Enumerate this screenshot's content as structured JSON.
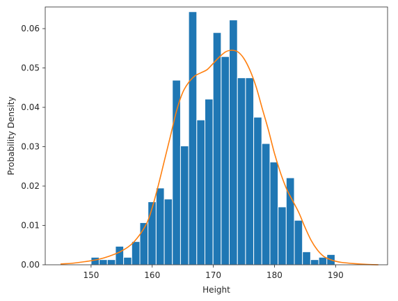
{
  "chart_data": {
    "type": "bar",
    "title": "",
    "xlabel": "Height",
    "ylabel": "Probability Density",
    "xlim": [
      142.5,
      198.5
    ],
    "ylim": [
      0,
      0.0655
    ],
    "grid": false,
    "legend": "none",
    "x_ticks": [
      150,
      160,
      170,
      180,
      190
    ],
    "y_ticks": [
      0.0,
      0.01,
      0.02,
      0.03,
      0.04,
      0.05,
      0.06
    ],
    "y_tick_labels": [
      "0.00",
      "0.01",
      "0.02",
      "0.03",
      "0.04",
      "0.05",
      "0.06"
    ],
    "bar_color": "#1f77b4",
    "kde_color": "#ff7f0e",
    "bins": [
      {
        "x0": 150.0,
        "x1": 151.33,
        "density": 0.0019
      },
      {
        "x0": 151.33,
        "x1": 152.66,
        "density": 0.0013
      },
      {
        "x0": 152.66,
        "x1": 153.99,
        "density": 0.0013
      },
      {
        "x0": 153.99,
        "x1": 155.32,
        "density": 0.0047
      },
      {
        "x0": 155.32,
        "x1": 156.65,
        "density": 0.0019
      },
      {
        "x0": 156.65,
        "x1": 157.98,
        "density": 0.0059
      },
      {
        "x0": 157.98,
        "x1": 159.31,
        "density": 0.0107
      },
      {
        "x0": 159.31,
        "x1": 160.64,
        "density": 0.016
      },
      {
        "x0": 160.64,
        "x1": 161.97,
        "density": 0.0195
      },
      {
        "x0": 161.97,
        "x1": 163.3,
        "density": 0.0167
      },
      {
        "x0": 163.3,
        "x1": 164.63,
        "density": 0.0469
      },
      {
        "x0": 164.63,
        "x1": 165.96,
        "density": 0.0302
      },
      {
        "x0": 165.96,
        "x1": 167.29,
        "density": 0.0643
      },
      {
        "x0": 167.29,
        "x1": 168.62,
        "density": 0.0368
      },
      {
        "x0": 168.62,
        "x1": 169.95,
        "density": 0.0421
      },
      {
        "x0": 169.95,
        "x1": 171.28,
        "density": 0.059
      },
      {
        "x0": 171.28,
        "x1": 172.61,
        "density": 0.0529
      },
      {
        "x0": 172.61,
        "x1": 173.94,
        "density": 0.0622
      },
      {
        "x0": 173.94,
        "x1": 175.27,
        "density": 0.0475
      },
      {
        "x0": 175.27,
        "x1": 176.6,
        "density": 0.0475
      },
      {
        "x0": 176.6,
        "x1": 177.93,
        "density": 0.0375
      },
      {
        "x0": 177.93,
        "x1": 179.26,
        "density": 0.0308
      },
      {
        "x0": 179.26,
        "x1": 180.59,
        "density": 0.0261
      },
      {
        "x0": 180.59,
        "x1": 181.92,
        "density": 0.0147
      },
      {
        "x0": 181.92,
        "x1": 183.25,
        "density": 0.0221
      },
      {
        "x0": 183.25,
        "x1": 184.58,
        "density": 0.0113
      },
      {
        "x0": 184.58,
        "x1": 185.91,
        "density": 0.0033
      },
      {
        "x0": 185.91,
        "x1": 187.24,
        "density": 0.0013
      },
      {
        "x0": 187.24,
        "x1": 188.57,
        "density": 0.0019
      },
      {
        "x0": 188.57,
        "x1": 189.9,
        "density": 0.0026
      }
    ],
    "kde": {
      "x": [
        145,
        147,
        149,
        151,
        153,
        155,
        157,
        159,
        160,
        161,
        162,
        163,
        164,
        165,
        166,
        167,
        168,
        169,
        170,
        171,
        172,
        173,
        174,
        175,
        176,
        177,
        178,
        179,
        180,
        181,
        182,
        183,
        184,
        185,
        186,
        187,
        188,
        189,
        190,
        191,
        193,
        195,
        197
      ],
      "y": [
        0.0002,
        0.0004,
        0.0008,
        0.0013,
        0.0022,
        0.0035,
        0.0058,
        0.0102,
        0.0145,
        0.0202,
        0.0265,
        0.0328,
        0.0392,
        0.0438,
        0.0464,
        0.048,
        0.0488,
        0.0496,
        0.0512,
        0.0528,
        0.0541,
        0.0545,
        0.0541,
        0.0524,
        0.0494,
        0.0452,
        0.0397,
        0.0343,
        0.0283,
        0.0233,
        0.0192,
        0.0162,
        0.0132,
        0.0095,
        0.0062,
        0.0038,
        0.0022,
        0.0014,
        0.0009,
        0.0006,
        0.0003,
        0.0001,
        0.0
      ]
    }
  }
}
